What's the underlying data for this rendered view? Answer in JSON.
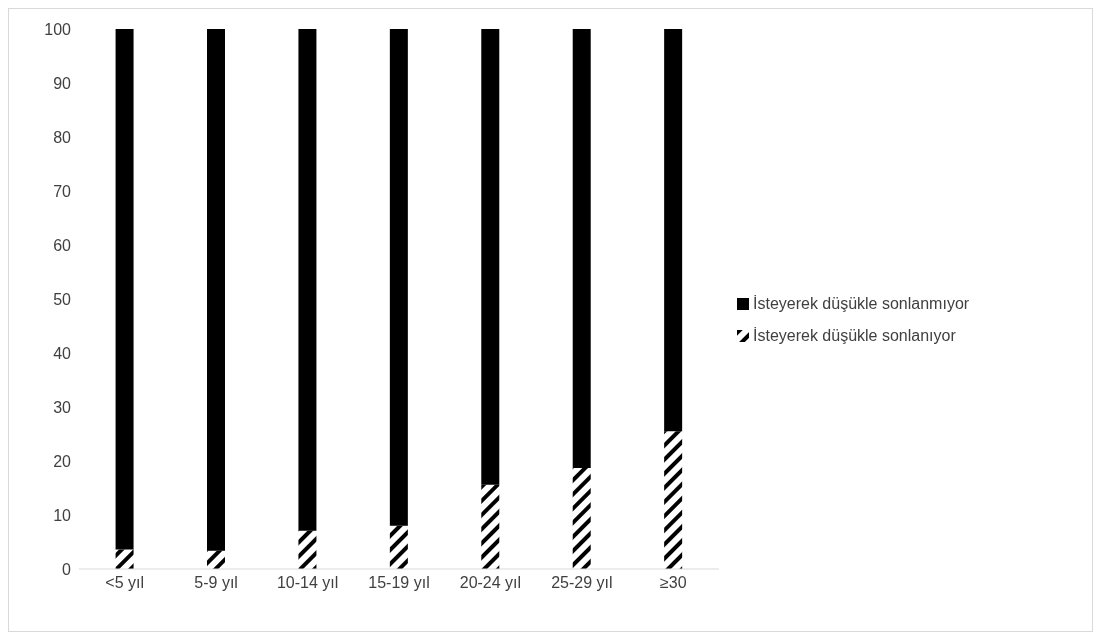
{
  "chart_data": {
    "type": "bar",
    "stacked": true,
    "categories": [
      "<5 yıl",
      "5-9 yıl",
      "10-14 yıl",
      "15-19 yıl",
      "20-24 yıl",
      "25-29 yıl",
      "≥30"
    ],
    "series": [
      {
        "name": "İsteyerek düşükle sonlanıyor",
        "color": "#000000",
        "values": [
          3.6,
          3.4,
          7.1,
          8.0,
          15.6,
          18.7,
          25.5
        ]
      },
      {
        "name": "İsteyerek düşükle sonlanmıyor",
        "color": "#000000",
        "values": [
          96.4,
          96.6,
          92.9,
          92.0,
          84.4,
          81.3,
          74.5
        ]
      }
    ],
    "ylim": [
      0,
      100
    ],
    "yticks": [
      0,
      10,
      20,
      30,
      40,
      50,
      60,
      70,
      80,
      90,
      100
    ],
    "grid": false,
    "legend": "right"
  }
}
